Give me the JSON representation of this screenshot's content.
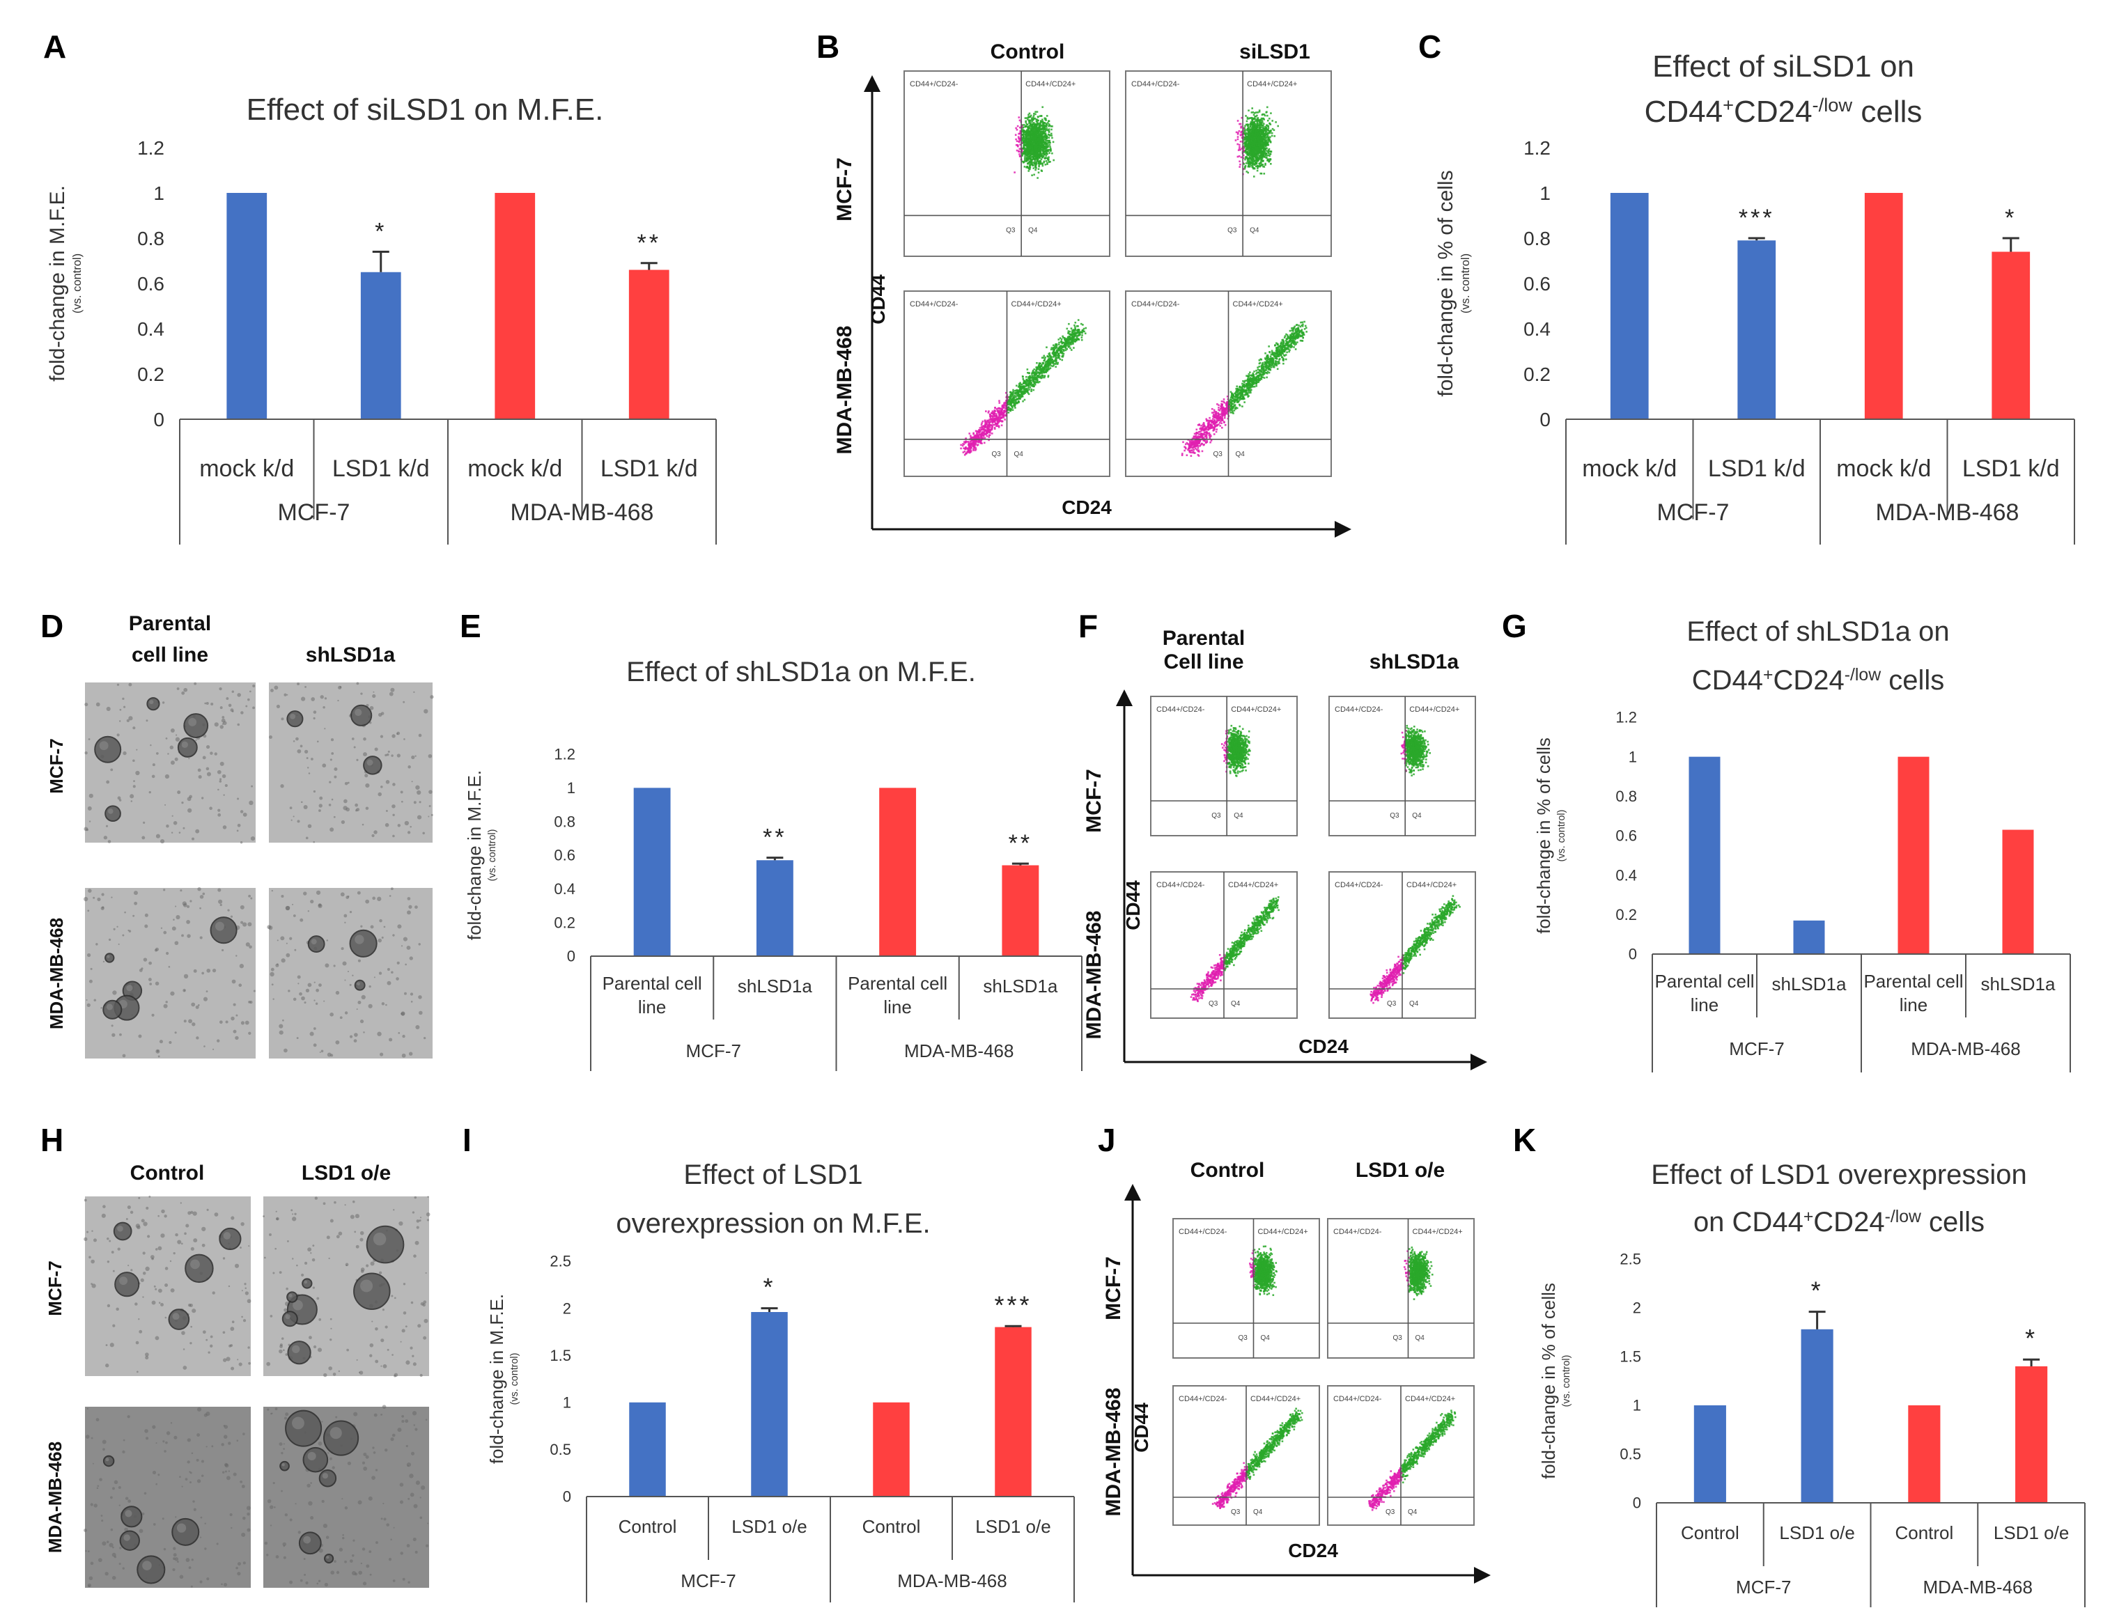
{
  "panel_letters": [
    "A",
    "B",
    "C",
    "D",
    "E",
    "F",
    "G",
    "H",
    "I",
    "J",
    "K"
  ],
  "colors": {
    "blue": "#4472c4",
    "red": "#ff4040",
    "pink": "#e020b0",
    "green": "#2aa82a",
    "micro_bg": "#b8b8b8",
    "micro_bg_dark": "#8c8c8c"
  },
  "chart_data": [
    {
      "panel": "A",
      "type": "bar",
      "title_lines": [
        "Effect of siLSD1 on M.F.E."
      ],
      "ylabel": "fold-change in M.F.E.",
      "ylabel_sub": "(vs. control)",
      "yticks": [
        "0",
        "0.2",
        "0.4",
        "0.6",
        "0.8",
        "1",
        "1.2"
      ],
      "ylim": [
        0,
        1.2
      ],
      "categories": [
        "mock k/d",
        "LSD1 k/d",
        "mock k/d",
        "LSD1 k/d"
      ],
      "groups": [
        "MCF-7",
        "MDA-MB-468"
      ],
      "values": [
        1,
        0.65,
        1,
        0.66
      ],
      "errors": [
        0,
        0.09,
        0,
        0.03
      ],
      "bar_colors": [
        "blue",
        "blue",
        "red",
        "red"
      ],
      "stars": [
        "",
        "*",
        "",
        "**"
      ]
    },
    {
      "panel": "C",
      "type": "bar",
      "title_lines": [
        "Effect of siLSD1 on",
        "CD44+CD24-/low cells"
      ],
      "ylabel": "fold-change in % of cells",
      "ylabel_sub": "(vs. control)",
      "yticks": [
        "0",
        "0.2",
        "0.4",
        "0.6",
        "0.8",
        "1",
        "1.2"
      ],
      "ylim": [
        0,
        1.2
      ],
      "categories": [
        "mock k/d",
        "LSD1 k/d",
        "mock k/d",
        "LSD1 k/d"
      ],
      "groups": [
        "MCF-7",
        "MDA-MB-468"
      ],
      "values": [
        1,
        0.79,
        1,
        0.74
      ],
      "errors": [
        0,
        0.01,
        0,
        0.06
      ],
      "bar_colors": [
        "blue",
        "blue",
        "red",
        "red"
      ],
      "stars": [
        "",
        "***",
        "",
        "*"
      ]
    },
    {
      "panel": "E",
      "type": "bar",
      "title_lines": [
        "Effect of shLSD1a on M.F.E."
      ],
      "ylabel": "fold-change in M.F.E.",
      "ylabel_sub": "(vs. control)",
      "yticks": [
        "0",
        "0.2",
        "0.4",
        "0.6",
        "0.8",
        "1",
        "1.2"
      ],
      "ylim": [
        0,
        1.2
      ],
      "categories": [
        "Parental cell line",
        "shLSD1a",
        "Parental cell line",
        "shLSD1a"
      ],
      "groups": [
        "MCF-7",
        "MDA-MB-468"
      ],
      "values": [
        1,
        0.57,
        1,
        0.54
      ],
      "errors": [
        0,
        0.015,
        0,
        0.01
      ],
      "bar_colors": [
        "blue",
        "blue",
        "red",
        "red"
      ],
      "stars": [
        "",
        "**",
        "",
        "**"
      ]
    },
    {
      "panel": "G",
      "type": "bar",
      "title_lines": [
        "Effect of shLSD1a on",
        "CD44+CD24-/low cells"
      ],
      "ylabel": "fold-change in % of cells",
      "ylabel_sub": "(vs. control)",
      "yticks": [
        "0",
        "0.2",
        "0.4",
        "0.6",
        "0.8",
        "1",
        "1.2"
      ],
      "ylim": [
        0,
        1.2
      ],
      "categories": [
        "Parental cell line",
        "shLSD1a",
        "Parental cell line",
        "shLSD1a"
      ],
      "groups": [
        "MCF-7",
        "MDA-MB-468"
      ],
      "values": [
        1,
        0.17,
        1,
        0.63
      ],
      "errors": [
        0,
        0,
        0,
        0
      ],
      "bar_colors": [
        "blue",
        "blue",
        "red",
        "red"
      ],
      "stars": [
        "",
        "",
        "",
        ""
      ]
    },
    {
      "panel": "I",
      "type": "bar",
      "title_lines": [
        "Effect of LSD1",
        "overexpression on M.F.E."
      ],
      "ylabel": "fold-change in M.F.E.",
      "ylabel_sub": "(vs. control)",
      "yticks": [
        "0",
        "0.5",
        "1",
        "1.5",
        "2",
        "2.5"
      ],
      "ylim": [
        0,
        2.5
      ],
      "categories": [
        "Control",
        "LSD1 o/e",
        "Control",
        "LSD1 o/e"
      ],
      "groups": [
        "MCF-7",
        "MDA-MB-468"
      ],
      "values": [
        1,
        1.96,
        1,
        1.8
      ],
      "errors": [
        0,
        0.04,
        0,
        0.01
      ],
      "bar_colors": [
        "blue",
        "blue",
        "red",
        "red"
      ],
      "stars": [
        "",
        "*",
        "",
        "***"
      ]
    },
    {
      "panel": "K",
      "type": "bar",
      "title_lines": [
        "Effect of LSD1 overexpression",
        "on CD44+CD24-/low cells"
      ],
      "ylabel": "fold-change in % of cells",
      "ylabel_sub": "(vs. control)",
      "yticks": [
        "0",
        "0.5",
        "1",
        "1.5",
        "2",
        "2.5"
      ],
      "ylim": [
        0,
        2.5
      ],
      "categories": [
        "Control",
        "LSD1 o/e",
        "Control",
        "LSD1 o/e"
      ],
      "groups": [
        "MCF-7",
        "MDA-MB-468"
      ],
      "values": [
        1,
        1.78,
        1,
        1.4
      ],
      "errors": [
        0,
        0.18,
        0,
        0.07
      ],
      "bar_colors": [
        "blue",
        "blue",
        "red",
        "red"
      ],
      "stars": [
        "",
        "*",
        "",
        "*"
      ]
    }
  ],
  "flow_panels": [
    {
      "panel": "B",
      "col_labels": [
        "Control",
        "siLSD1"
      ],
      "row_labels": [
        "MCF-7",
        "MDA-MB-468"
      ],
      "x_axis": "CD24",
      "y_axis": "CD44",
      "plot_texts": [
        {
          "gate_left": "CD44+/CD24-",
          "gate_right": "CD44+/CD24+",
          "q_left": "Q3",
          "q_right": "Q4"
        },
        {
          "gate_left": "CD44+/CD24-",
          "gate_right": "CD44+/CD24+",
          "q_left": "Q3",
          "q_right": "Q4"
        },
        {
          "gate_left": "CD44+/CD24-",
          "gate_right": "CD44+/CD24+",
          "q_left": "Q3",
          "q_right": "Q4"
        },
        {
          "gate_left": "CD44+/CD24-",
          "gate_right": "CD44+/CD24+",
          "q_left": "Q3",
          "q_right": "Q4"
        }
      ]
    },
    {
      "panel": "F",
      "col_labels": [
        "Parental\nCell line",
        "shLSD1a"
      ],
      "row_labels": [
        "MCF-7",
        "MDA-MB-468"
      ],
      "x_axis": "CD24",
      "y_axis": "CD44",
      "plot_texts": [
        {
          "gate_left": "CD44+/CD24-",
          "gate_right": "CD44+/CD24+",
          "q_left": "Q3",
          "q_right": "Q4"
        },
        {
          "gate_left": "CD44+/CD24-",
          "gate_right": "CD44+/CD24+",
          "q_left": "Q3",
          "q_right": "Q4"
        },
        {
          "gate_left": "CD44+/CD24-",
          "gate_right": "CD44+/CD24+",
          "q_left": "Q3",
          "q_right": "Q4"
        },
        {
          "gate_left": "CD44+/CD24-",
          "gate_right": "CD44+/CD24+",
          "q_left": "Q3",
          "q_right": "Q4"
        }
      ]
    },
    {
      "panel": "J",
      "col_labels": [
        "Control",
        "LSD1 o/e"
      ],
      "row_labels": [
        "MCF-7",
        "MDA-MB-468"
      ],
      "x_axis": "CD24",
      "y_axis": "CD44",
      "plot_texts": [
        {
          "gate_left": "CD44+/CD24-",
          "gate_right": "CD44+/CD24+",
          "q_left": "Q3",
          "q_right": "Q4"
        },
        {
          "gate_left": "CD44+/CD24-",
          "gate_right": "CD44+/CD24+",
          "q_left": "Q3",
          "q_right": "Q4"
        },
        {
          "gate_left": "CD44+/CD24-",
          "gate_right": "CD44+/CD24+",
          "q_left": "Q3",
          "q_right": "Q4"
        },
        {
          "gate_left": "CD44+/CD24-",
          "gate_right": "CD44+/CD24+",
          "q_left": "Q3",
          "q_right": "Q4"
        }
      ]
    }
  ],
  "micro_panels": [
    {
      "panel": "D",
      "col_labels": [
        "Parental\ncell line",
        "shLSD1a"
      ],
      "row_labels": [
        "MCF-7",
        "MDA-MB-468"
      ]
    },
    {
      "panel": "H",
      "col_labels": [
        "Control",
        "LSD1 o/e"
      ],
      "row_labels": [
        "MCF-7",
        "MDA-MB-468"
      ]
    }
  ]
}
